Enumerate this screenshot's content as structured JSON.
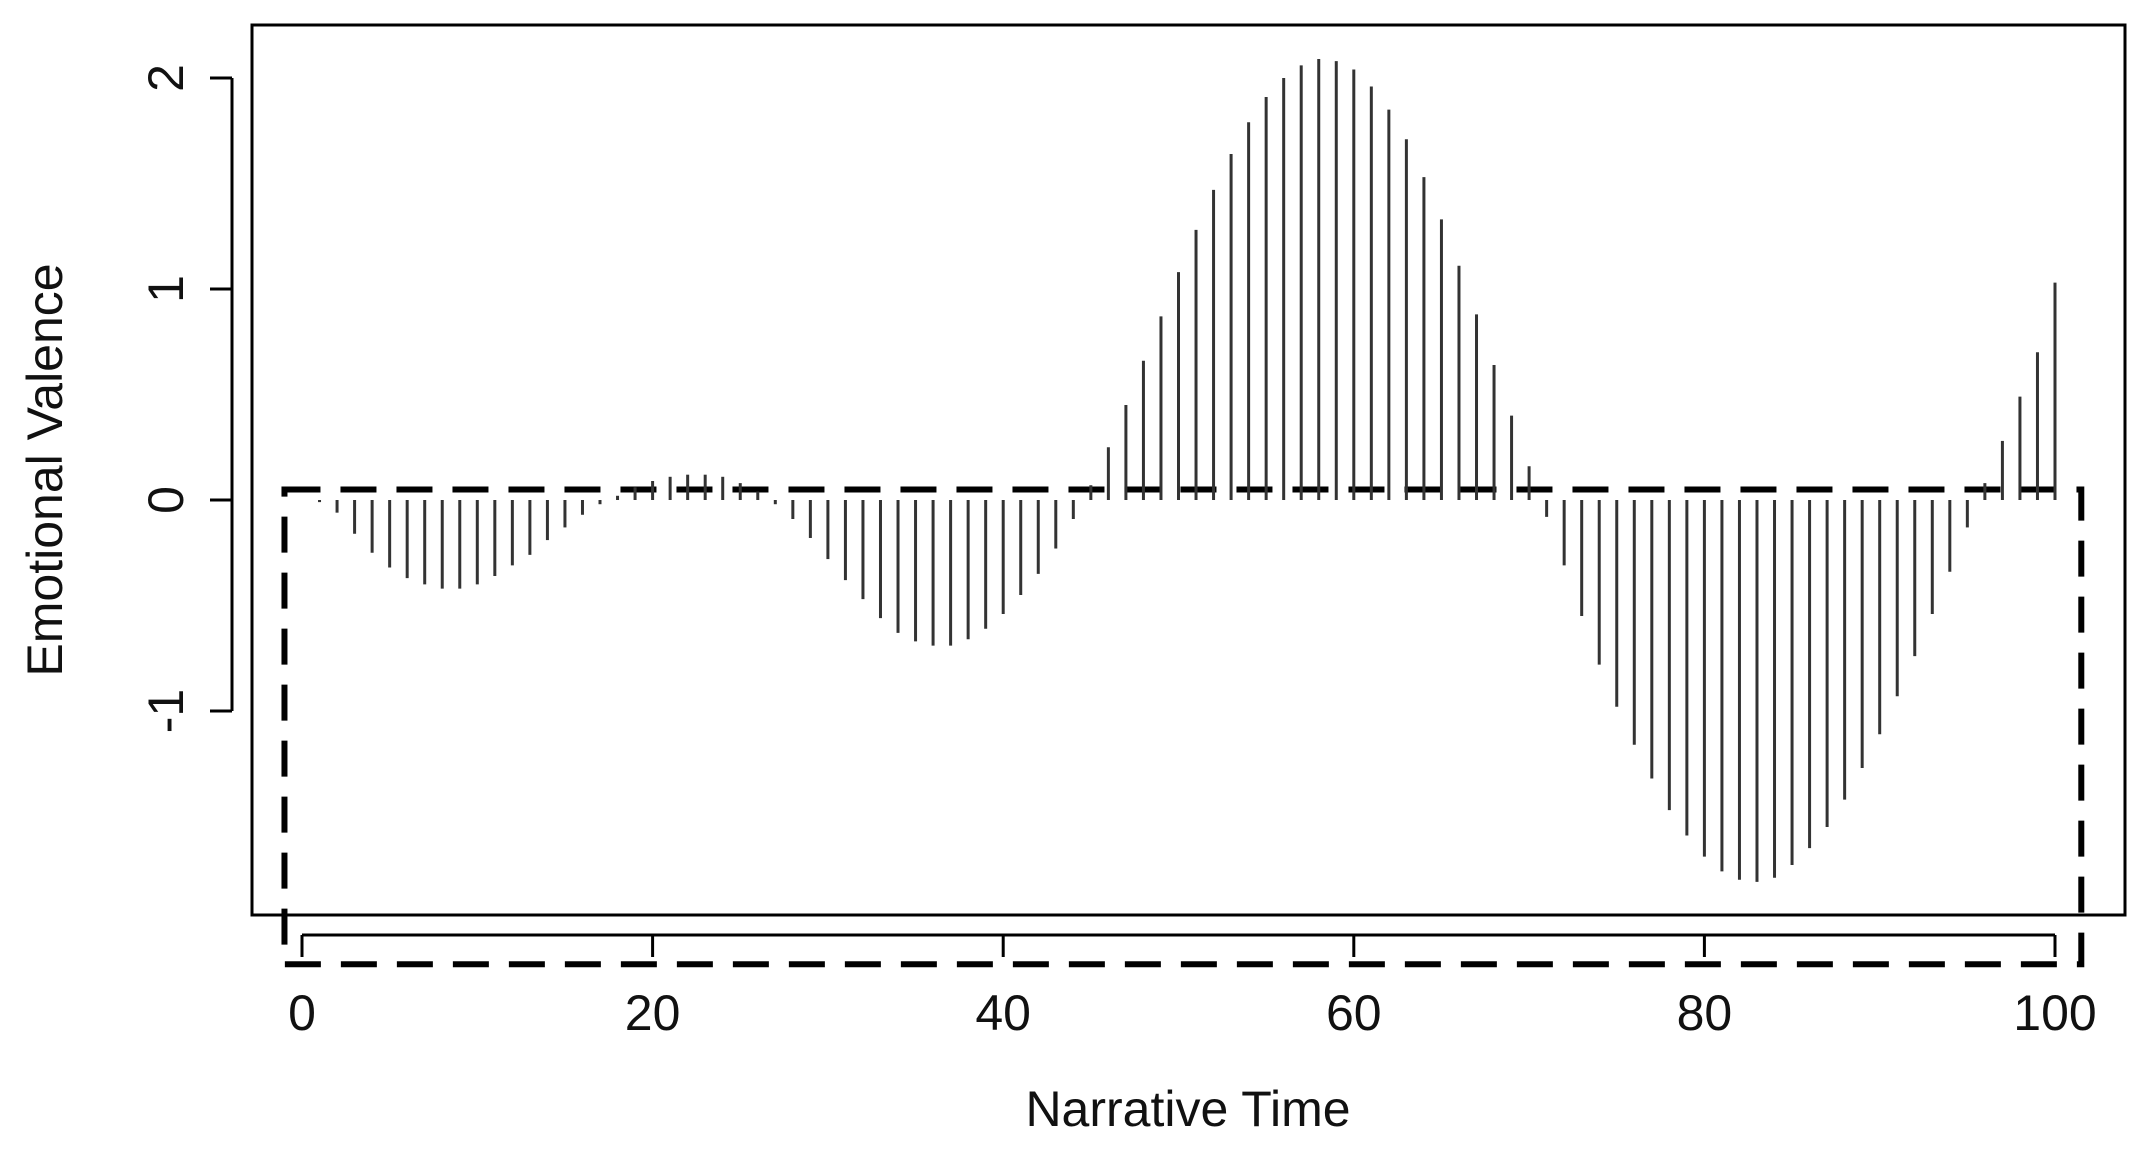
{
  "chart_data": {
    "type": "bar",
    "title": "",
    "xlabel": "Narrative Time",
    "ylabel": "Emotional Valence",
    "xlim": [
      -1.5,
      103
    ],
    "ylim": [
      -1.97,
      2.27
    ],
    "xticks": [
      0,
      20,
      40,
      60,
      80,
      100
    ],
    "yticks": [
      -1,
      0,
      1,
      2
    ],
    "xtick_labels": [
      "0",
      "20",
      "40",
      "60",
      "80",
      "100"
    ],
    "ytick_labels": [
      "-1",
      "0",
      "1",
      "2"
    ],
    "grid": false,
    "legend": "none",
    "bar_color": "#333333",
    "x": [
      1,
      2,
      3,
      4,
      5,
      6,
      7,
      8,
      9,
      10,
      11,
      12,
      13,
      14,
      15,
      16,
      17,
      18,
      19,
      20,
      21,
      22,
      23,
      24,
      25,
      26,
      27,
      28,
      29,
      30,
      31,
      32,
      33,
      34,
      35,
      36,
      37,
      38,
      39,
      40,
      41,
      42,
      43,
      44,
      45,
      46,
      47,
      48,
      49,
      50,
      51,
      52,
      53,
      54,
      55,
      56,
      57,
      58,
      59,
      60,
      61,
      62,
      63,
      64,
      65,
      66,
      67,
      68,
      69,
      70,
      71,
      72,
      73,
      74,
      75,
      76,
      77,
      78,
      79,
      80,
      81,
      82,
      83,
      84,
      85,
      86,
      87,
      88,
      89,
      90,
      91,
      92,
      93,
      94,
      95,
      96,
      97,
      98,
      99,
      100
    ],
    "values": [
      -0.01,
      -0.06,
      -0.16,
      -0.25,
      -0.32,
      -0.37,
      -0.4,
      -0.42,
      -0.42,
      -0.4,
      -0.36,
      -0.31,
      -0.26,
      -0.19,
      -0.13,
      -0.07,
      -0.02,
      0.02,
      0.06,
      0.09,
      0.11,
      0.12,
      0.12,
      0.11,
      0.08,
      0.04,
      -0.02,
      -0.09,
      -0.18,
      -0.28,
      -0.38,
      -0.47,
      -0.56,
      -0.63,
      -0.67,
      -0.69,
      -0.69,
      -0.66,
      -0.61,
      -0.54,
      -0.45,
      -0.35,
      -0.23,
      -0.09,
      0.07,
      0.25,
      0.45,
      0.66,
      0.87,
      1.08,
      1.28,
      1.47,
      1.64,
      1.79,
      1.91,
      2.0,
      2.06,
      2.09,
      2.08,
      2.04,
      1.96,
      1.85,
      1.71,
      1.53,
      1.33,
      1.11,
      0.88,
      0.64,
      0.4,
      0.16,
      -0.08,
      -0.31,
      -0.55,
      -0.78,
      -0.98,
      -1.16,
      -1.32,
      -1.47,
      -1.59,
      -1.69,
      -1.76,
      -1.8,
      -1.81,
      -1.79,
      -1.73,
      -1.65,
      -1.55,
      -1.42,
      -1.27,
      -1.11,
      -0.93,
      -0.74,
      -0.54,
      -0.34,
      -0.13,
      0.08,
      0.28,
      0.49,
      0.7,
      1.03
    ],
    "box_outline": {
      "style": "dashed",
      "x_range": [
        -1,
        101.5
      ],
      "y_range": [
        -2.2,
        0.05
      ]
    }
  }
}
